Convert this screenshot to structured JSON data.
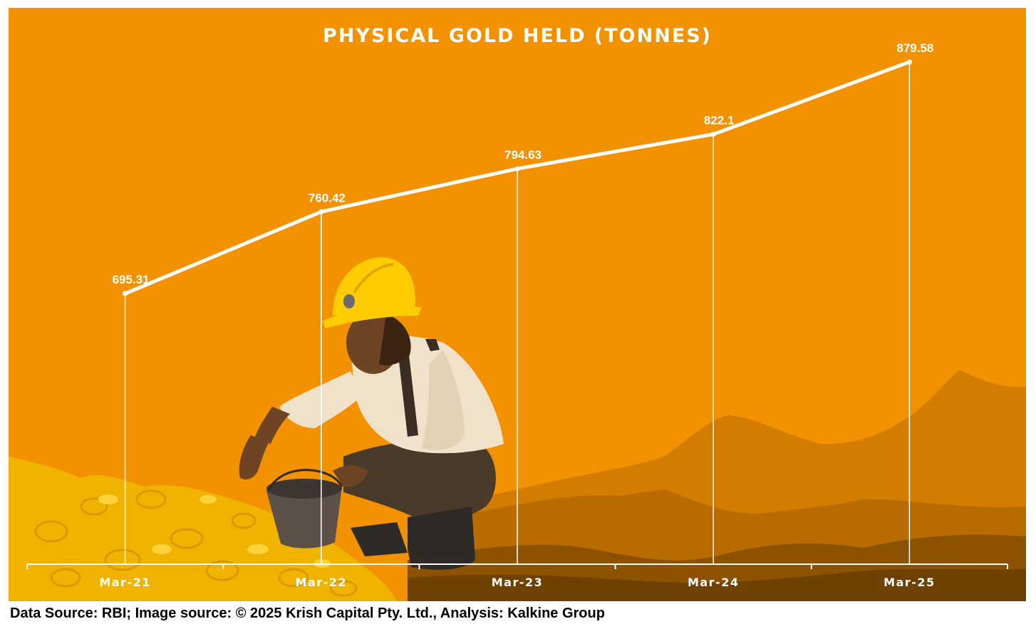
{
  "chart_data": {
    "type": "line",
    "title": "PHYSICAL GOLD HELD (TONNES)",
    "categories": [
      "Mar-21",
      "Mar-22",
      "Mar-23",
      "Mar-24",
      "Mar-25"
    ],
    "series": [
      {
        "values": [
          695.31,
          760.42,
          794.63,
          822.1,
          879.58
        ]
      }
    ],
    "data_labels": [
      "695.31",
      "760.42",
      "794.63",
      "822.1",
      "879.58"
    ],
    "ylim": [
      480,
      900
    ],
    "grid": false,
    "legend": "none",
    "colors": {
      "background": "#F39200",
      "line": "#FFFFFF",
      "text": "#FFFFFF"
    }
  },
  "source_note": "Data Source: RBI; Image source: © 2025 Krish Capital Pty. Ltd., Analysis: Kalkine Group",
  "illustration_icon": "gold-miner-illustration-icon"
}
